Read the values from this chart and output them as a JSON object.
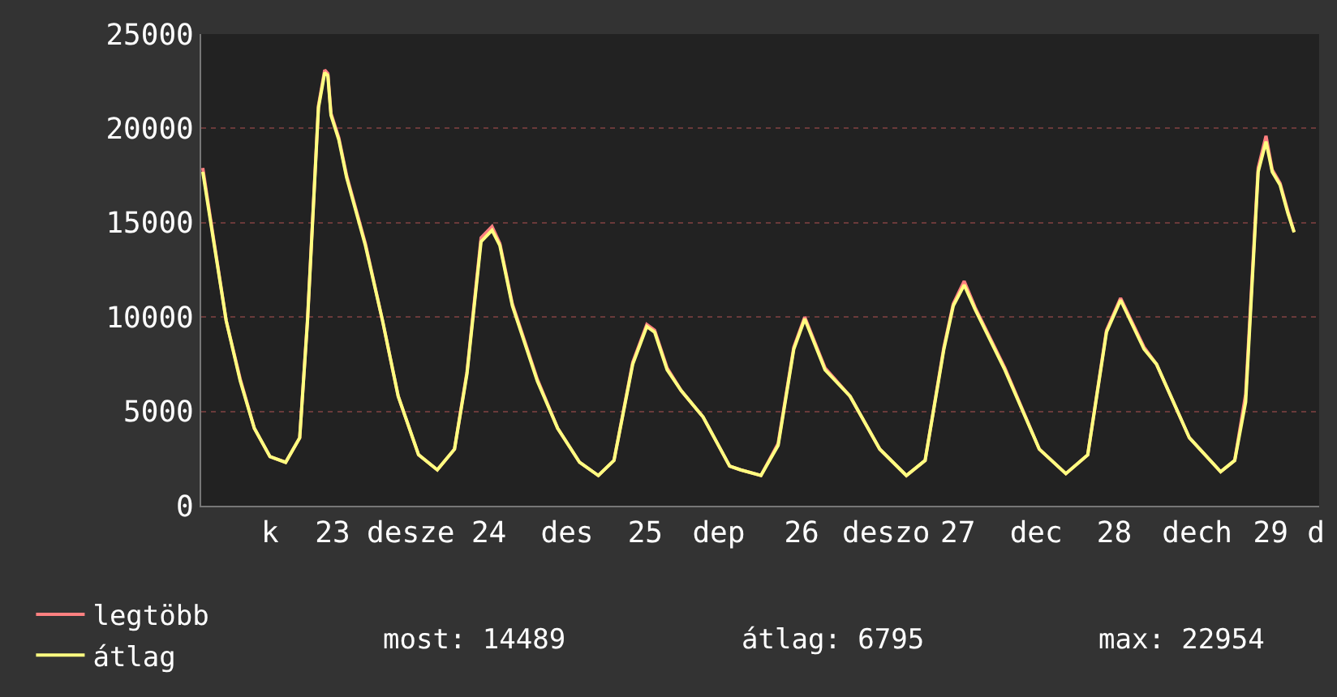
{
  "chart_data": {
    "type": "line",
    "x": [
      22.17,
      22.24,
      22.32,
      22.41,
      22.5,
      22.6,
      22.7,
      22.79,
      22.84,
      22.91,
      22.95,
      22.97,
      22.99,
      23.04,
      23.09,
      23.21,
      23.32,
      23.42,
      23.55,
      23.67,
      23.78,
      23.86,
      23.95,
      24.02,
      24.07,
      24.15,
      24.31,
      24.44,
      24.58,
      24.7,
      24.8,
      24.92,
      25.01,
      25.06,
      25.14,
      25.23,
      25.37,
      25.54,
      25.61,
      25.74,
      25.85,
      25.95,
      26.02,
      26.15,
      26.31,
      26.5,
      26.67,
      26.79,
      26.91,
      26.97,
      27.04,
      27.11,
      27.3,
      27.52,
      27.69,
      27.83,
      27.95,
      28.04,
      28.19,
      28.27,
      28.48,
      28.68,
      28.77,
      28.84,
      28.92,
      28.97,
      29.01,
      29.06,
      29.11,
      29.15
    ],
    "series": [
      {
        "name": "legtöbb",
        "color": "#ff8080",
        "values": [
          17900,
          14100,
          9800,
          6700,
          4100,
          2600,
          2300,
          3600,
          9900,
          21200,
          23100,
          22900,
          20800,
          19500,
          17500,
          13900,
          9800,
          5800,
          2700,
          1900,
          3000,
          7100,
          14200,
          14800,
          13900,
          10700,
          6700,
          4100,
          2300,
          1600,
          2400,
          7600,
          9600,
          9300,
          7300,
          6100,
          4700,
          2100,
          1900,
          1600,
          3300,
          8400,
          10000,
          7300,
          5800,
          3000,
          1600,
          2400,
          8400,
          10700,
          11900,
          10500,
          7300,
          3000,
          1700,
          2700,
          9300,
          11000,
          8400,
          7500,
          3600,
          1800,
          2400,
          5900,
          17900,
          19600,
          17800,
          17100,
          15600,
          14500
        ]
      },
      {
        "name": "átlag",
        "color": "#ffff80",
        "values": [
          17700,
          14000,
          9800,
          6600,
          4100,
          2600,
          2300,
          3600,
          9800,
          21100,
          22954,
          22800,
          20700,
          19400,
          17400,
          13800,
          9800,
          5800,
          2700,
          1900,
          3000,
          7000,
          14000,
          14600,
          13800,
          10600,
          6600,
          4100,
          2300,
          1600,
          2400,
          7500,
          9500,
          9200,
          7200,
          6100,
          4700,
          2100,
          1900,
          1600,
          3200,
          8300,
          9900,
          7200,
          5800,
          3000,
          1600,
          2400,
          8300,
          10600,
          11700,
          10400,
          7200,
          3000,
          1700,
          2700,
          9200,
          10900,
          8300,
          7500,
          3600,
          1800,
          2400,
          5500,
          17700,
          19300,
          17700,
          17000,
          15500,
          14489
        ]
      }
    ],
    "xlim": [
      22.16,
      29.31
    ],
    "xticks": [
      {
        "value": 22.6,
        "label": "k"
      },
      {
        "value": 23,
        "label": "23"
      },
      {
        "value": 23.5,
        "label": "desze"
      },
      {
        "value": 24,
        "label": "24"
      },
      {
        "value": 24.5,
        "label": "des"
      },
      {
        "value": 25,
        "label": "25"
      },
      {
        "value": 25.47,
        "label": "dep"
      },
      {
        "value": 26,
        "label": "26"
      },
      {
        "value": 26.54,
        "label": "deszo"
      },
      {
        "value": 27,
        "label": "27"
      },
      {
        "value": 27.5,
        "label": "dec"
      },
      {
        "value": 28,
        "label": "28"
      },
      {
        "value": 28.53,
        "label": "dech"
      },
      {
        "value": 29,
        "label": "29"
      },
      {
        "value": 29.29,
        "label": "d"
      }
    ],
    "ylim": [
      0,
      25000
    ],
    "yticks": [
      0,
      5000,
      10000,
      15000,
      20000,
      25000
    ],
    "grid": "y",
    "legend": "bottom left",
    "annotations": [
      "most: 14489",
      "átlag: 6795",
      "max: 22954"
    ]
  }
}
